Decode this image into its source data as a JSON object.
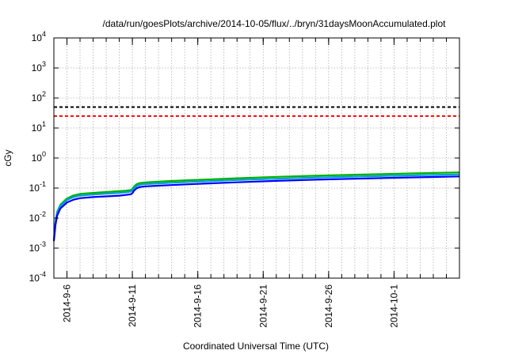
{
  "chart_data": {
    "type": "line",
    "title": "/data/run/goesPlots/archive/2014-10-05/flux/../bryn/31daysMoonAccumulated.plot",
    "xlabel": "Coordinated Universal Time (UTC)",
    "ylabel": "cGy",
    "y_scale": "log",
    "ylim": [
      0.0001,
      10000
    ],
    "xlim": [
      "2014-09-05T00:00",
      "2014-10-06T00:00"
    ],
    "grid": true,
    "x_ticks": [
      "2014-9-6",
      "2014-9-11",
      "2014-9-16",
      "2014-9-21",
      "2014-9-26",
      "2014-10-1"
    ],
    "y_ticks": [
      {
        "value": 0.0001,
        "base": "10",
        "exp": "-4"
      },
      {
        "value": 0.001,
        "base": "10",
        "exp": "-3"
      },
      {
        "value": 0.01,
        "base": "10",
        "exp": "-2"
      },
      {
        "value": 0.1,
        "base": "10",
        "exp": "-1"
      },
      {
        "value": 1,
        "base": "10",
        "exp": "0"
      },
      {
        "value": 10,
        "base": "10",
        "exp": "1"
      },
      {
        "value": 100,
        "base": "10",
        "exp": "2"
      },
      {
        "value": 1000,
        "base": "10",
        "exp": "3"
      },
      {
        "value": 10000,
        "base": "10",
        "exp": "4"
      }
    ],
    "thresholds": [
      {
        "value": 50,
        "color": "#000000"
      },
      {
        "value": 25,
        "color": "#ff0000"
      }
    ],
    "series": [
      {
        "color": "#00b000",
        "x": [
          "2014-09-05T00:00",
          "2014-09-05T03:00",
          "2014-09-05T06:00",
          "2014-09-05T12:00",
          "2014-09-06T00:00",
          "2014-09-06T12:00",
          "2014-09-07T00:00",
          "2014-09-08T00:00",
          "2014-09-09T00:00",
          "2014-09-10T00:00",
          "2014-09-10T12:00",
          "2014-09-10T21:00",
          "2014-09-11T00:00",
          "2014-09-11T03:00",
          "2014-09-11T08:00",
          "2014-09-11T14:00",
          "2014-09-12T00:00",
          "2014-09-13T00:00",
          "2014-09-14T00:00",
          "2014-09-16T00:00",
          "2014-09-19T00:00",
          "2014-09-22T00:00",
          "2014-09-25T00:00",
          "2014-09-28T00:00",
          "2014-10-01T00:00",
          "2014-10-04T00:00",
          "2014-10-06T00:00"
        ],
        "y": [
          0.002,
          0.008,
          0.016,
          0.028,
          0.045,
          0.057,
          0.064,
          0.069,
          0.074,
          0.079,
          0.082,
          0.086,
          0.093,
          0.112,
          0.135,
          0.147,
          0.155,
          0.163,
          0.172,
          0.188,
          0.212,
          0.236,
          0.258,
          0.278,
          0.298,
          0.318,
          0.332
        ]
      },
      {
        "color": "#00a0d0",
        "x": [
          "2014-09-05T00:00",
          "2014-09-05T03:00",
          "2014-09-05T06:00",
          "2014-09-05T12:00",
          "2014-09-06T00:00",
          "2014-09-06T12:00",
          "2014-09-07T00:00",
          "2014-09-08T00:00",
          "2014-09-09T00:00",
          "2014-09-10T00:00",
          "2014-09-10T12:00",
          "2014-09-10T21:00",
          "2014-09-11T00:00",
          "2014-09-11T03:00",
          "2014-09-11T08:00",
          "2014-09-11T14:00",
          "2014-09-12T00:00",
          "2014-09-13T00:00",
          "2014-09-14T00:00",
          "2014-09-16T00:00",
          "2014-09-19T00:00",
          "2014-09-22T00:00",
          "2014-09-25T00:00",
          "2014-09-28T00:00",
          "2014-10-01T00:00",
          "2014-10-04T00:00",
          "2014-10-06T00:00"
        ],
        "y": [
          0.0019,
          0.0072,
          0.0145,
          0.025,
          0.04,
          0.05,
          0.056,
          0.061,
          0.065,
          0.069,
          0.072,
          0.076,
          0.082,
          0.099,
          0.118,
          0.129,
          0.136,
          0.143,
          0.15,
          0.164,
          0.185,
          0.205,
          0.224,
          0.241,
          0.258,
          0.274,
          0.285
        ]
      },
      {
        "color": "#0000ff",
        "x": [
          "2014-09-05T00:00",
          "2014-09-05T03:00",
          "2014-09-05T06:00",
          "2014-09-05T12:00",
          "2014-09-06T00:00",
          "2014-09-06T12:00",
          "2014-09-07T00:00",
          "2014-09-08T00:00",
          "2014-09-09T00:00",
          "2014-09-10T00:00",
          "2014-09-10T12:00",
          "2014-09-10T21:00",
          "2014-09-11T00:00",
          "2014-09-11T03:00",
          "2014-09-11T08:00",
          "2014-09-11T14:00",
          "2014-09-12T00:00",
          "2014-09-13T00:00",
          "2014-09-14T00:00",
          "2014-09-16T00:00",
          "2014-09-19T00:00",
          "2014-09-22T00:00",
          "2014-09-25T00:00",
          "2014-09-28T00:00",
          "2014-10-01T00:00",
          "2014-10-04T00:00",
          "2014-10-06T00:00"
        ],
        "y": [
          0.0017,
          0.006,
          0.012,
          0.021,
          0.033,
          0.041,
          0.046,
          0.05,
          0.053,
          0.056,
          0.059,
          0.062,
          0.067,
          0.082,
          0.099,
          0.108,
          0.114,
          0.12,
          0.126,
          0.138,
          0.156,
          0.174,
          0.19,
          0.205,
          0.22,
          0.234,
          0.244
        ]
      }
    ]
  }
}
